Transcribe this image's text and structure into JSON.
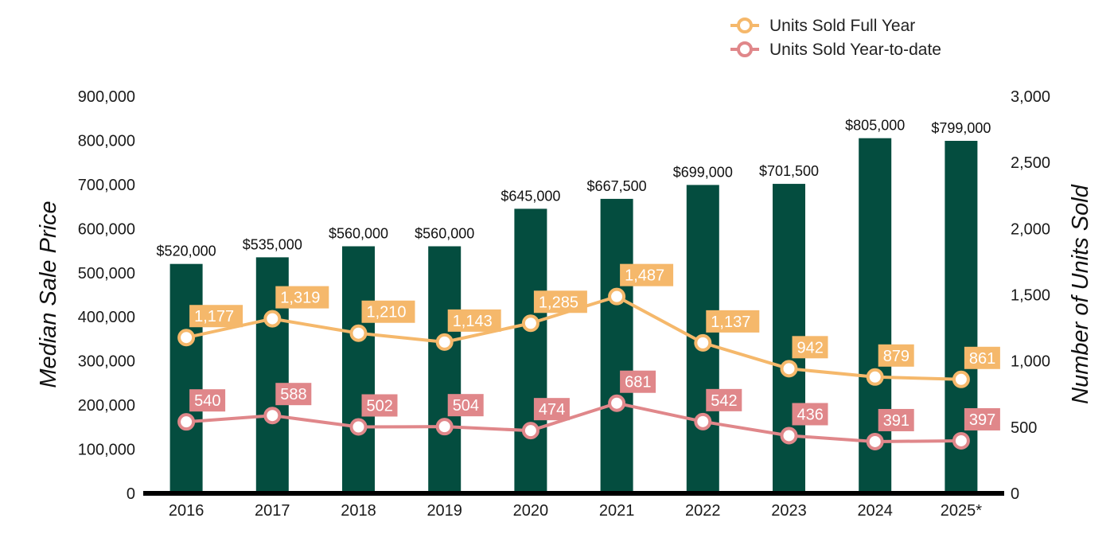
{
  "chart_data": {
    "type": "bar",
    "categories": [
      "2016",
      "2017",
      "2018",
      "2019",
      "2020",
      "2021",
      "2022",
      "2023",
      "2024",
      "2025*"
    ],
    "y_left_label": "Median Sale Price",
    "y_right_label": "Number of Units Sold",
    "y_left_ticks": [
      "0",
      "100,000",
      "200,000",
      "300,000",
      "400,000",
      "500,000",
      "600,000",
      "700,000",
      "800,000",
      "900,000"
    ],
    "y_right_ticks": [
      "0",
      "500",
      "1,000",
      "1,500",
      "2,000",
      "2,500",
      "3,000"
    ],
    "ylim_left": [
      0,
      900000
    ],
    "ylim_right": [
      0,
      3000
    ],
    "bars": {
      "name": "Median Sale Price",
      "values": [
        520000,
        535000,
        560000,
        560000,
        645000,
        667500,
        699000,
        701500,
        805000,
        799000
      ],
      "labels": [
        "$520,000",
        "$535,000",
        "$560,000",
        "$560,000",
        "$645,000",
        "$667,500",
        "$699,000",
        "$701,500",
        "$805,000",
        "$799,000"
      ],
      "color": "#044d3f"
    },
    "series": [
      {
        "name": "Units Sold Full Year",
        "axis": "right",
        "values": [
          1177,
          1319,
          1210,
          1143,
          1285,
          1487,
          1137,
          942,
          879,
          861
        ],
        "labels": [
          "1,177",
          "1,319",
          "1,210",
          "1,143",
          "1,285",
          "1,487",
          "1,137",
          "942",
          "879",
          "861"
        ],
        "color": "#f5b86b"
      },
      {
        "name": "Units Sold Year-to-date",
        "axis": "right",
        "values": [
          540,
          588,
          502,
          504,
          474,
          681,
          542,
          436,
          391,
          397
        ],
        "labels": [
          "540",
          "588",
          "502",
          "504",
          "474",
          "681",
          "542",
          "436",
          "391",
          "397"
        ],
        "color": "#e0878a"
      }
    ],
    "legend_position": "top-right",
    "grid": false
  }
}
